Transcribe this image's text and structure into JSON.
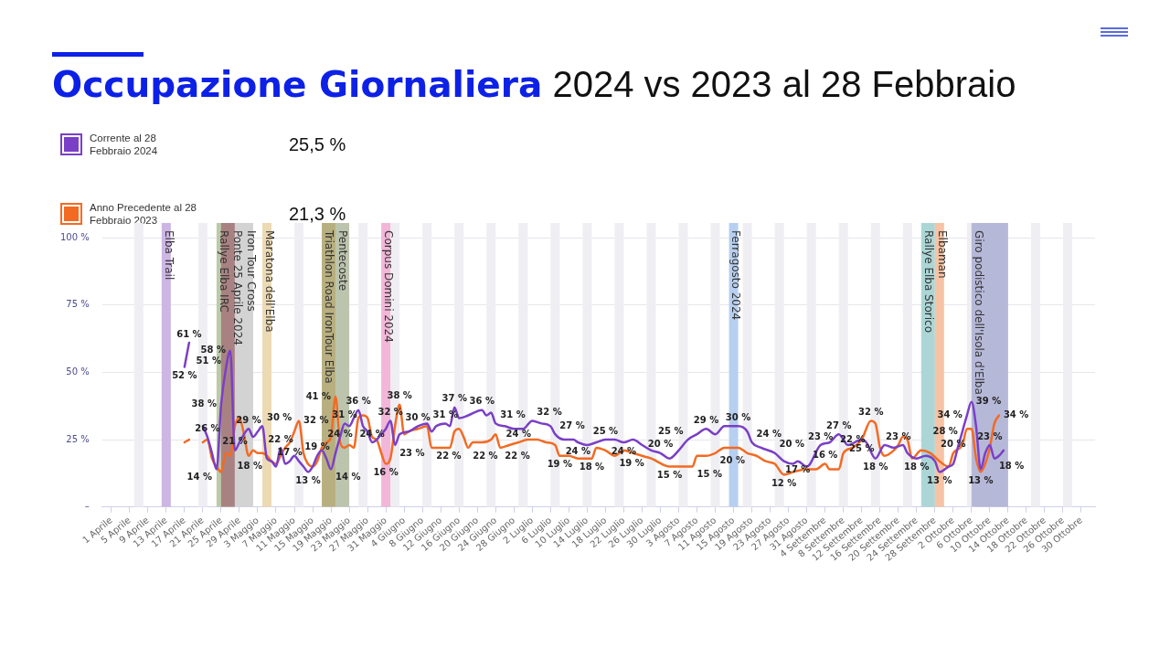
{
  "chart_data": {
    "type": "line",
    "title": "Occupazione Giornaliera",
    "subtitle": "2024 vs 2023 al 28 Febbraio",
    "annotations": [
      "25,5 %",
      "21,3 %"
    ],
    "legend": "top left",
    "grid": "y",
    "marker": "none",
    "xlim": [
      "2024-03-30",
      "2024-11-02"
    ],
    "xticks": [
      {
        "value": "2024-04-01",
        "label": "1 Aprile"
      },
      {
        "value": "2024-04-05",
        "label": "5 Aprile"
      },
      {
        "value": "2024-04-09",
        "label": "9 Aprile"
      },
      {
        "value": "2024-04-13",
        "label": "13 Aprile"
      },
      {
        "value": "2024-04-17",
        "label": "17 Aprile"
      },
      {
        "value": "2024-04-21",
        "label": "21 Aprile"
      },
      {
        "value": "2024-04-25",
        "label": "25 Aprile"
      },
      {
        "value": "2024-04-29",
        "label": "29 Aprile"
      },
      {
        "value": "2024-05-03",
        "label": "3 Maggio"
      },
      {
        "value": "2024-05-07",
        "label": "7 Maggio"
      },
      {
        "value": "2024-05-11",
        "label": "11 Maggio"
      },
      {
        "value": "2024-05-15",
        "label": "15 Maggio"
      },
      {
        "value": "2024-05-19",
        "label": "19 Maggio"
      },
      {
        "value": "2024-05-23",
        "label": "23 Maggio"
      },
      {
        "value": "2024-05-27",
        "label": "27 Maggio"
      },
      {
        "value": "2024-05-31",
        "label": "31 Maggio"
      },
      {
        "value": "2024-06-04",
        "label": "4 Giugno"
      },
      {
        "value": "2024-06-08",
        "label": "8 Giugno"
      },
      {
        "value": "2024-06-12",
        "label": "12 Giugno"
      },
      {
        "value": "2024-06-16",
        "label": "16 Giugno"
      },
      {
        "value": "2024-06-20",
        "label": "20 Giugno"
      },
      {
        "value": "2024-06-24",
        "label": "24 Giugno"
      },
      {
        "value": "2024-06-28",
        "label": "28 Giugno"
      },
      {
        "value": "2024-07-02",
        "label": "2 Luglio"
      },
      {
        "value": "2024-07-06",
        "label": "6 Luglio"
      },
      {
        "value": "2024-07-10",
        "label": "10 Luglio"
      },
      {
        "value": "2024-07-14",
        "label": "14 Luglio"
      },
      {
        "value": "2024-07-18",
        "label": "18 Luglio"
      },
      {
        "value": "2024-07-22",
        "label": "22 Luglio"
      },
      {
        "value": "2024-07-26",
        "label": "26 Luglio"
      },
      {
        "value": "2024-07-30",
        "label": "30 Luglio"
      },
      {
        "value": "2024-08-03",
        "label": "3 Agosto"
      },
      {
        "value": "2024-08-07",
        "label": "7 Agosto"
      },
      {
        "value": "2024-08-11",
        "label": "11 Agosto"
      },
      {
        "value": "2024-08-15",
        "label": "15 Agosto"
      },
      {
        "value": "2024-08-19",
        "label": "19 Agosto"
      },
      {
        "value": "2024-08-23",
        "label": "23 Agosto"
      },
      {
        "value": "2024-08-27",
        "label": "27 Agosto"
      },
      {
        "value": "2024-08-31",
        "label": "31 Agosto"
      },
      {
        "value": "2024-09-04",
        "label": "4 Settembre"
      },
      {
        "value": "2024-09-08",
        "label": "8 Settembre"
      },
      {
        "value": "2024-09-12",
        "label": "12 Settembre"
      },
      {
        "value": "2024-09-16",
        "label": "16 Settembre"
      },
      {
        "value": "2024-09-20",
        "label": "20 Settembre"
      },
      {
        "value": "2024-09-24",
        "label": "24 Settembre"
      },
      {
        "value": "2024-09-28",
        "label": "28 Settembre"
      },
      {
        "value": "2024-10-02",
        "label": "2 Ottobre"
      },
      {
        "value": "2024-10-06",
        "label": "6 Ottobre"
      },
      {
        "value": "2024-10-10",
        "label": "10 Ottobre"
      },
      {
        "value": "2024-10-14",
        "label": "14 Ottobre"
      },
      {
        "value": "2024-10-18",
        "label": "18 Ottobre"
      },
      {
        "value": "2024-10-22",
        "label": "22 Ottobre"
      },
      {
        "value": "2024-10-26",
        "label": "26 Ottobre"
      },
      {
        "value": "2024-10-30",
        "label": "30 Ottobre"
      }
    ],
    "ylim": [
      0,
      100
    ],
    "yticks": [
      {
        "value": 0,
        "label": "–"
      },
      {
        "value": 25,
        "label": "25 %"
      },
      {
        "value": 50,
        "label": "50 %"
      },
      {
        "value": 75,
        "label": "75 %"
      },
      {
        "value": 100,
        "label": "100 %"
      }
    ],
    "bands": [
      {
        "axis": "x",
        "from": "2024-04-06",
        "to": "2024-04-08",
        "color": "#efeff3"
      },
      {
        "axis": "x",
        "from": "2024-04-20",
        "to": "2024-04-22",
        "color": "#efeff3"
      },
      {
        "axis": "x",
        "from": "2024-05-11",
        "to": "2024-05-13",
        "color": "#efeff3"
      },
      {
        "axis": "x",
        "from": "2024-05-25",
        "to": "2024-05-27",
        "color": "#efeff3"
      },
      {
        "axis": "x",
        "from": "2024-06-01",
        "to": "2024-06-03",
        "color": "#efeff3"
      },
      {
        "axis": "x",
        "from": "2024-06-08",
        "to": "2024-06-10",
        "color": "#efeff3"
      },
      {
        "axis": "x",
        "from": "2024-06-15",
        "to": "2024-06-17",
        "color": "#efeff3"
      },
      {
        "axis": "x",
        "from": "2024-06-22",
        "to": "2024-06-24",
        "color": "#efeff3"
      },
      {
        "axis": "x",
        "from": "2024-06-29",
        "to": "2024-07-01",
        "color": "#efeff3"
      },
      {
        "axis": "x",
        "from": "2024-07-06",
        "to": "2024-07-08",
        "color": "#efeff3"
      },
      {
        "axis": "x",
        "from": "2024-07-13",
        "to": "2024-07-15",
        "color": "#efeff3"
      },
      {
        "axis": "x",
        "from": "2024-07-20",
        "to": "2024-07-22",
        "color": "#efeff3"
      },
      {
        "axis": "x",
        "from": "2024-07-27",
        "to": "2024-07-29",
        "color": "#efeff3"
      },
      {
        "axis": "x",
        "from": "2024-08-03",
        "to": "2024-08-05",
        "color": "#efeff3"
      },
      {
        "axis": "x",
        "from": "2024-08-10",
        "to": "2024-08-12",
        "color": "#efeff3"
      },
      {
        "axis": "x",
        "from": "2024-08-17",
        "to": "2024-08-19",
        "color": "#efeff3"
      },
      {
        "axis": "x",
        "from": "2024-08-24",
        "to": "2024-08-26",
        "color": "#efeff3"
      },
      {
        "axis": "x",
        "from": "2024-08-31",
        "to": "2024-09-02",
        "color": "#efeff3"
      },
      {
        "axis": "x",
        "from": "2024-09-07",
        "to": "2024-09-09",
        "color": "#efeff3"
      },
      {
        "axis": "x",
        "from": "2024-09-14",
        "to": "2024-09-16",
        "color": "#efeff3"
      },
      {
        "axis": "x",
        "from": "2024-09-21",
        "to": "2024-09-23",
        "color": "#efeff3"
      },
      {
        "axis": "x",
        "from": "2024-10-05",
        "to": "2024-10-07",
        "color": "#efeff3"
      },
      {
        "axis": "x",
        "from": "2024-10-19",
        "to": "2024-10-21",
        "color": "#efeff3"
      },
      {
        "axis": "x",
        "from": "2024-10-26",
        "to": "2024-10-28",
        "color": "#efeff3"
      },
      {
        "axis": "x",
        "from": "2024-04-12",
        "to": "2024-04-14",
        "label": "Elba Trail",
        "color": "#cdb6e3"
      },
      {
        "axis": "x",
        "from": "2024-04-24",
        "to": "2024-04-26",
        "label": "Rallye Elba IRC",
        "color": "#bccaa8"
      },
      {
        "axis": "x",
        "from": "2024-04-25",
        "to": "2024-04-28",
        "label": "Ponte 25 Aprile 2024",
        "color": "#a88282"
      },
      {
        "axis": "x",
        "from": "2024-04-28",
        "to": "2024-05-02",
        "label": "Iron Tour Cross",
        "color": "#d3d3d3"
      },
      {
        "axis": "x",
        "from": "2024-05-04",
        "to": "2024-05-06",
        "label": "Maratona dell'Elba",
        "color": "#ecdab4"
      },
      {
        "axis": "x",
        "from": "2024-05-17",
        "to": "2024-05-20",
        "label": "Triathlon Road IronTour Elba",
        "color": "#b8af80"
      },
      {
        "axis": "x",
        "from": "2024-05-20",
        "to": "2024-05-23",
        "label": "Pentecoste",
        "color": "#bcc4ad"
      },
      {
        "axis": "x",
        "from": "2024-05-30",
        "to": "2024-06-01",
        "label": "Corpus Domini 2024",
        "color": "#f1b6d8"
      },
      {
        "axis": "x",
        "from": "2024-08-14",
        "to": "2024-08-16",
        "label": "Ferragosto 2024",
        "color": "#b7cff0"
      },
      {
        "axis": "x",
        "from": "2024-09-25",
        "to": "2024-09-28",
        "label": "Rallye Elba Storico",
        "color": "#acd6d6"
      },
      {
        "axis": "x",
        "from": "2024-09-28",
        "to": "2024-09-30",
        "label": "Elbaman",
        "color": "#f6c3a4"
      },
      {
        "axis": "x",
        "from": "2024-10-06",
        "to": "2024-10-14",
        "label": "Giro podistico dell'Isola d'Elba",
        "color": "#b6b8d8"
      }
    ],
    "series": [
      {
        "name": "Corrente al 28 Febbraio 2024",
        "color": "#7a3fc6",
        "x": [
          "2024-04-17",
          "2024-04-18",
          "2024-04-19",
          "2024-04-21",
          "2024-04-22",
          "2024-04-23",
          "2024-04-24",
          "2024-04-25",
          "2024-04-26",
          "2024-04-27",
          "2024-04-28",
          "2024-04-29",
          "2024-04-30",
          "2024-05-01",
          "2024-05-02",
          "2024-05-03",
          "2024-05-04",
          "2024-05-05",
          "2024-05-06",
          "2024-05-07",
          "2024-05-08",
          "2024-05-09",
          "2024-05-10",
          "2024-05-11",
          "2024-05-12",
          "2024-05-13",
          "2024-05-14",
          "2024-05-15",
          "2024-05-16",
          "2024-05-17",
          "2024-05-18",
          "2024-05-19",
          "2024-05-20",
          "2024-05-21",
          "2024-05-22",
          "2024-05-23",
          "2024-05-24",
          "2024-05-25",
          "2024-05-26",
          "2024-05-27",
          "2024-05-28",
          "2024-05-29",
          "2024-05-30",
          "2024-05-31",
          "2024-06-01",
          "2024-06-02",
          "2024-06-03",
          "2024-06-05",
          "2024-06-07",
          "2024-06-09",
          "2024-06-10",
          "2024-06-11",
          "2024-06-13",
          "2024-06-14",
          "2024-06-15",
          "2024-06-16",
          "2024-06-18",
          "2024-06-21",
          "2024-06-22",
          "2024-06-23",
          "2024-06-24",
          "2024-06-26",
          "2024-06-28",
          "2024-06-30",
          "2024-07-02",
          "2024-07-04",
          "2024-07-06",
          "2024-07-07",
          "2024-07-09",
          "2024-07-11",
          "2024-07-12",
          "2024-07-14",
          "2024-07-16",
          "2024-07-18",
          "2024-07-20",
          "2024-07-22",
          "2024-07-24",
          "2024-07-26",
          "2024-07-28",
          "2024-07-30",
          "2024-08-01",
          "2024-08-03",
          "2024-08-05",
          "2024-08-07",
          "2024-08-09",
          "2024-08-11",
          "2024-08-13",
          "2024-08-16",
          "2024-08-18",
          "2024-08-19",
          "2024-08-21",
          "2024-08-24",
          "2024-08-26",
          "2024-08-28",
          "2024-08-29",
          "2024-08-31",
          "2024-09-03",
          "2024-09-05",
          "2024-09-07",
          "2024-09-09",
          "2024-09-12",
          "2024-09-13",
          "2024-09-15",
          "2024-09-17",
          "2024-09-19",
          "2024-09-21",
          "2024-09-22",
          "2024-09-24",
          "2024-09-26",
          "2024-09-28",
          "2024-09-29",
          "2024-10-01",
          "2024-10-02",
          "2024-10-03",
          "2024-10-04",
          "2024-10-05",
          "2024-10-06",
          "2024-10-07",
          "2024-10-08",
          "2024-10-09",
          "2024-10-10",
          "2024-10-11",
          "2024-10-12",
          "2024-10-13"
        ],
        "values": [
          52,
          61,
          null,
          30,
          26,
          20,
          14,
          38,
          51,
          58,
          21,
          24,
          27,
          29,
          26,
          28,
          30,
          18,
          17,
          15,
          22,
          16,
          17,
          19,
          17,
          15,
          13,
          15,
          19,
          21,
          18,
          14,
          20,
          26,
          31,
          30,
          33,
          36,
          30,
          28,
          24,
          25,
          27,
          29,
          32,
          23,
          27,
          28,
          30,
          31,
          28,
          30,
          31,
          30,
          37,
          33,
          34,
          36,
          34,
          35,
          31,
          30,
          29,
          29,
          32,
          31,
          30,
          27,
          25,
          25,
          24,
          23,
          24,
          25,
          25,
          24,
          25,
          23,
          21,
          20,
          18,
          21,
          25,
          27,
          29,
          27,
          30,
          30,
          28,
          24,
          22,
          20,
          17,
          16,
          17,
          15,
          23,
          24,
          27,
          23,
          25,
          24,
          18,
          23,
          22,
          23,
          20,
          18,
          19,
          17,
          13,
          15,
          16,
          22,
          28,
          34,
          39,
          30,
          14,
          20,
          23,
          18,
          19,
          21
        ],
        "value_labels": [
          "52 %",
          "61 %",
          null,
          null,
          "26 %",
          null,
          "14 %",
          "38 %",
          "51 %",
          "58 %",
          "21 %",
          null,
          null,
          "29 %",
          null,
          null,
          "30 %",
          "18 %",
          null,
          null,
          "22 %",
          null,
          "17 %",
          null,
          null,
          null,
          "13 %",
          null,
          "19 %",
          null,
          null,
          "14 %",
          null,
          null,
          "31 %",
          null,
          null,
          "36 %",
          null,
          null,
          "24 %",
          null,
          null,
          null,
          "32 %",
          "23 %",
          null,
          null,
          "30 %",
          null,
          null,
          null,
          "31 %",
          null,
          "37 %",
          null,
          null,
          "36 %",
          null,
          null,
          "31 %",
          null,
          null,
          null,
          "32 %",
          null,
          null,
          "27 %",
          null,
          null,
          "24 %",
          null,
          null,
          "25 %",
          null,
          "24 %",
          null,
          null,
          null,
          "20 %",
          null,
          null,
          "25 %",
          null,
          "29 %",
          null,
          null,
          "30 %",
          null,
          "24 %",
          null,
          "20 %",
          null,
          null,
          "17 %",
          null,
          "23 %",
          null,
          "27 %",
          null,
          "25 %",
          null,
          "18 %",
          null,
          null,
          null,
          null,
          "18 %",
          null,
          null,
          "13 %",
          null,
          null,
          null,
          "28 %",
          "34 %",
          "39 %",
          null,
          null,
          null,
          "23 %",
          "18 %",
          null,
          null
        ]
      },
      {
        "name": "Anno Precedente al 28 Febbraio 2023",
        "color": "#f36a22",
        "x": [
          "2024-04-17",
          "2024-04-18",
          "2024-04-19",
          "2024-04-21",
          "2024-04-22",
          "2024-04-23",
          "2024-04-24",
          "2024-04-25",
          "2024-04-26",
          "2024-04-27",
          "2024-04-28",
          "2024-04-29",
          "2024-04-30",
          "2024-05-01",
          "2024-05-02",
          "2024-05-03",
          "2024-05-04",
          "2024-05-05",
          "2024-05-06",
          "2024-05-07",
          "2024-05-08",
          "2024-05-09",
          "2024-05-10",
          "2024-05-11",
          "2024-05-12",
          "2024-05-13",
          "2024-05-14",
          "2024-05-15",
          "2024-05-16",
          "2024-05-17",
          "2024-05-18",
          "2024-05-19",
          "2024-05-20",
          "2024-05-21",
          "2024-05-22",
          "2024-05-23",
          "2024-05-24",
          "2024-05-25",
          "2024-05-26",
          "2024-05-27",
          "2024-05-28",
          "2024-05-29",
          "2024-05-30",
          "2024-05-31",
          "2024-06-01",
          "2024-06-02",
          "2024-06-03",
          "2024-06-04",
          "2024-06-05",
          "2024-06-07",
          "2024-06-09",
          "2024-06-10",
          "2024-06-12",
          "2024-06-14",
          "2024-06-15",
          "2024-06-16",
          "2024-06-17",
          "2024-06-18",
          "2024-06-19",
          "2024-06-21",
          "2024-06-23",
          "2024-06-24",
          "2024-06-25",
          "2024-06-27",
          "2024-06-29",
          "2024-07-01",
          "2024-07-03",
          "2024-07-05",
          "2024-07-07",
          "2024-07-08",
          "2024-07-10",
          "2024-07-12",
          "2024-07-15",
          "2024-07-16",
          "2024-07-18",
          "2024-07-20",
          "2024-07-22",
          "2024-07-24",
          "2024-07-26",
          "2024-07-28",
          "2024-08-01",
          "2024-08-03",
          "2024-08-06",
          "2024-08-07",
          "2024-08-09",
          "2024-08-11",
          "2024-08-13",
          "2024-08-16",
          "2024-08-18",
          "2024-08-20",
          "2024-08-22",
          "2024-08-24",
          "2024-08-26",
          "2024-08-28",
          "2024-08-31",
          "2024-09-02",
          "2024-09-04",
          "2024-09-05",
          "2024-09-07",
          "2024-09-08",
          "2024-09-10",
          "2024-09-12",
          "2024-09-14",
          "2024-09-15",
          "2024-09-16",
          "2024-09-17",
          "2024-09-19",
          "2024-09-20",
          "2024-09-21",
          "2024-09-22",
          "2024-09-23",
          "2024-09-25",
          "2024-09-27",
          "2024-09-29",
          "2024-10-01",
          "2024-10-02",
          "2024-10-04",
          "2024-10-05",
          "2024-10-06",
          "2024-10-07",
          "2024-10-08",
          "2024-10-09",
          "2024-10-10",
          "2024-10-11",
          "2024-10-12"
        ],
        "values": [
          24,
          25,
          null,
          24,
          25,
          18,
          15,
          13,
          20,
          19,
          30,
          33,
          27,
          19,
          21,
          20,
          20,
          19,
          17,
          16,
          19,
          22,
          24,
          28,
          32,
          20,
          16,
          15,
          17,
          22,
          24,
          26,
          41,
          24,
          22,
          23,
          22,
          33,
          34,
          33,
          26,
          25,
          20,
          16,
          18,
          30,
          38,
          27,
          28,
          29,
          30,
          22,
          22,
          22,
          28,
          29,
          26,
          22,
          24,
          24,
          25,
          27,
          22,
          23,
          24,
          25,
          25,
          24,
          23,
          19,
          19,
          18,
          18,
          22,
          21,
          19,
          21,
          20,
          19,
          18,
          15,
          15,
          15,
          19,
          19,
          20,
          22,
          22,
          20,
          19,
          17,
          16,
          12,
          13,
          14,
          14,
          16,
          14,
          14,
          20,
          22,
          25,
          32,
          31,
          22,
          19,
          21,
          23,
          26,
          25,
          18,
          21,
          20,
          17,
          15,
          20,
          23,
          29,
          29,
          18,
          13,
          16,
          22,
          31,
          34
        ],
        "value_labels": [
          null,
          null,
          null,
          null,
          null,
          null,
          null,
          null,
          null,
          null,
          null,
          null,
          null,
          null,
          null,
          null,
          null,
          null,
          null,
          null,
          null,
          null,
          null,
          null,
          "32 %",
          null,
          null,
          null,
          null,
          null,
          null,
          null,
          "41 %",
          "24 %",
          null,
          null,
          null,
          null,
          null,
          null,
          null,
          null,
          null,
          "16 %",
          null,
          null,
          "38 %",
          null,
          null,
          null,
          null,
          "22 %",
          null,
          null,
          null,
          null,
          null,
          "22 %",
          null,
          null,
          null,
          null,
          "22 %",
          null,
          "24 %",
          null,
          null,
          null,
          null,
          "19 %",
          null,
          null,
          "18 %",
          null,
          null,
          "19 %",
          null,
          null,
          null,
          null,
          "15 %",
          null,
          "15 %",
          null,
          null,
          "20 %",
          null,
          null,
          null,
          null,
          null,
          null,
          "12 %",
          null,
          null,
          null,
          "16 %",
          null,
          null,
          null,
          "22 %",
          null,
          "32 %",
          null,
          null,
          null,
          null,
          "23 %",
          null,
          null,
          null,
          null,
          null,
          null,
          null,
          "20 %",
          null,
          null,
          null,
          null,
          "13 %",
          null,
          null,
          null,
          "34 %"
        ]
      }
    ]
  }
}
